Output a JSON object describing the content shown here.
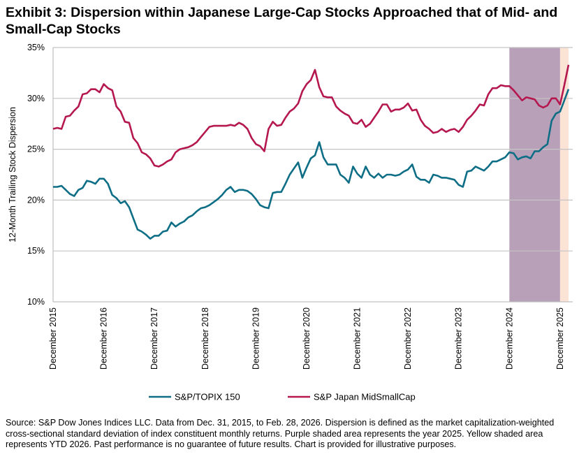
{
  "title": "Exhibit 3: Dispersion within Japanese Large-Cap Stocks Approached that of Mid- and Small-Cap Stocks",
  "source": "Source: S&P Dow Jones Indices LLC. Data from Dec. 31, 2015, to Feb. 28, 2026. Dispersion is defined as the market capitalization-weighted cross-sectional standard deviation of index constituent monthly returns. Purple shaded area represents the year 2025. Yellow shaded area represents YTD 2026. Past performance is no guarantee of future results. Chart is provided for illustrative purposes.",
  "chart_data": {
    "type": "line",
    "ylabel": "12-Month Trailing Stock Dispersion",
    "xlabel": "",
    "ylim": [
      10,
      35
    ],
    "y_ticks": [
      "10%",
      "15%",
      "20%",
      "25%",
      "30%",
      "35%"
    ],
    "x_tick_labels": [
      "December 2015",
      "December 2016",
      "December 2017",
      "December 2018",
      "December 2019",
      "December 2020",
      "December 2021",
      "December 2022",
      "December 2023",
      "December 2024",
      "December 2025"
    ],
    "grid": "horizontal",
    "legend": "bottom",
    "shaded_regions": [
      {
        "from": "2024-12",
        "to": "2025-12",
        "color": "#b8a0b9"
      },
      {
        "from": "2025-12",
        "to": "2026-02",
        "color": "#fbe3d6"
      }
    ],
    "x": [
      "2015-12",
      "2016-01",
      "2016-02",
      "2016-03",
      "2016-04",
      "2016-05",
      "2016-06",
      "2016-07",
      "2016-08",
      "2016-09",
      "2016-10",
      "2016-11",
      "2016-12",
      "2017-01",
      "2017-02",
      "2017-03",
      "2017-04",
      "2017-05",
      "2017-06",
      "2017-07",
      "2017-08",
      "2017-09",
      "2017-10",
      "2017-11",
      "2017-12",
      "2018-01",
      "2018-02",
      "2018-03",
      "2018-04",
      "2018-05",
      "2018-06",
      "2018-07",
      "2018-08",
      "2018-09",
      "2018-10",
      "2018-11",
      "2018-12",
      "2019-01",
      "2019-02",
      "2019-03",
      "2019-04",
      "2019-05",
      "2019-06",
      "2019-07",
      "2019-08",
      "2019-09",
      "2019-10",
      "2019-11",
      "2019-12",
      "2020-01",
      "2020-02",
      "2020-03",
      "2020-04",
      "2020-05",
      "2020-06",
      "2020-07",
      "2020-08",
      "2020-09",
      "2020-10",
      "2020-11",
      "2020-12",
      "2021-01",
      "2021-02",
      "2021-03",
      "2021-04",
      "2021-05",
      "2021-06",
      "2021-07",
      "2021-08",
      "2021-09",
      "2021-10",
      "2021-11",
      "2021-12",
      "2022-01",
      "2022-02",
      "2022-03",
      "2022-04",
      "2022-05",
      "2022-06",
      "2022-07",
      "2022-08",
      "2022-09",
      "2022-10",
      "2022-11",
      "2022-12",
      "2023-01",
      "2023-02",
      "2023-03",
      "2023-04",
      "2023-05",
      "2023-06",
      "2023-07",
      "2023-08",
      "2023-09",
      "2023-10",
      "2023-11",
      "2023-12",
      "2024-01",
      "2024-02",
      "2024-03",
      "2024-04",
      "2024-05",
      "2024-06",
      "2024-07",
      "2024-08",
      "2024-09",
      "2024-10",
      "2024-11",
      "2024-12",
      "2025-01",
      "2025-02",
      "2025-03",
      "2025-04",
      "2025-05",
      "2025-06",
      "2025-07",
      "2025-08",
      "2025-09",
      "2025-10",
      "2025-11",
      "2025-12",
      "2026-01",
      "2026-02"
    ],
    "series": [
      {
        "name": "S&P/TOPIX 150",
        "color": "#0e6e86",
        "values": [
          21.3,
          21.3,
          21.4,
          21.0,
          20.6,
          20.4,
          21.0,
          21.2,
          21.9,
          21.8,
          21.6,
          22.1,
          22.1,
          21.6,
          20.5,
          20.2,
          19.7,
          19.9,
          19.3,
          18.2,
          17.1,
          16.9,
          16.6,
          16.2,
          16.5,
          16.5,
          16.9,
          17.0,
          17.8,
          17.4,
          17.7,
          17.9,
          18.3,
          18.5,
          18.9,
          19.2,
          19.3,
          19.5,
          19.8,
          20.1,
          20.5,
          21.0,
          21.3,
          20.8,
          21.0,
          21.0,
          20.9,
          20.6,
          20.1,
          19.5,
          19.3,
          19.2,
          20.7,
          20.8,
          20.8,
          21.6,
          22.5,
          23.1,
          23.7,
          22.2,
          23.2,
          24.1,
          24.4,
          25.7,
          24.2,
          23.5,
          23.5,
          23.5,
          22.5,
          22.2,
          21.7,
          23.3,
          22.6,
          22.2,
          23.3,
          22.5,
          22.2,
          22.6,
          22.2,
          22.5,
          22.5,
          22.4,
          22.5,
          22.8,
          23.0,
          23.5,
          22.3,
          22.0,
          22.0,
          21.7,
          22.5,
          22.4,
          22.2,
          22.2,
          22.1,
          22.0,
          21.5,
          21.3,
          22.8,
          22.9,
          23.3,
          23.1,
          22.9,
          23.3,
          23.8,
          23.8,
          24.0,
          24.2,
          24.7,
          24.6,
          24.0,
          24.2,
          24.3,
          24.1,
          24.8,
          24.8,
          25.2,
          25.5,
          27.8,
          28.5,
          28.7,
          29.8,
          30.9
        ]
      },
      {
        "name": "S&P Japan MidSmallCap",
        "color": "#b5174f",
        "values": [
          27.0,
          27.1,
          27.0,
          28.2,
          28.3,
          28.8,
          29.2,
          30.4,
          30.5,
          30.9,
          30.9,
          30.6,
          31.4,
          31.0,
          30.8,
          29.2,
          28.7,
          27.7,
          27.6,
          26.1,
          25.6,
          24.7,
          24.5,
          24.1,
          23.4,
          23.3,
          23.5,
          23.8,
          24.0,
          24.7,
          25.0,
          25.1,
          25.2,
          25.4,
          25.7,
          26.2,
          26.7,
          27.2,
          27.3,
          27.3,
          27.3,
          27.3,
          27.4,
          27.3,
          27.6,
          27.4,
          27.0,
          26.1,
          25.5,
          25.3,
          24.8,
          27.0,
          27.7,
          27.3,
          27.4,
          28.1,
          28.7,
          29.0,
          29.5,
          30.7,
          31.4,
          31.8,
          32.8,
          31.1,
          30.2,
          30.1,
          30.1,
          29.2,
          28.8,
          28.5,
          28.3,
          27.6,
          27.5,
          27.9,
          27.2,
          27.5,
          28.1,
          28.7,
          29.4,
          29.4,
          28.7,
          28.9,
          28.9,
          29.1,
          29.5,
          28.8,
          28.9,
          27.9,
          27.3,
          27.0,
          26.6,
          26.7,
          27.0,
          26.7,
          26.9,
          27.0,
          26.7,
          27.2,
          27.9,
          28.3,
          28.8,
          29.4,
          29.3,
          30.4,
          31.0,
          31.0,
          31.3,
          31.2,
          31.2,
          30.8,
          30.3,
          29.8,
          30.1,
          30.0,
          29.9,
          29.3,
          29.1,
          29.3,
          30.0,
          30.0,
          29.4,
          31.3,
          33.3
        ]
      }
    ]
  }
}
